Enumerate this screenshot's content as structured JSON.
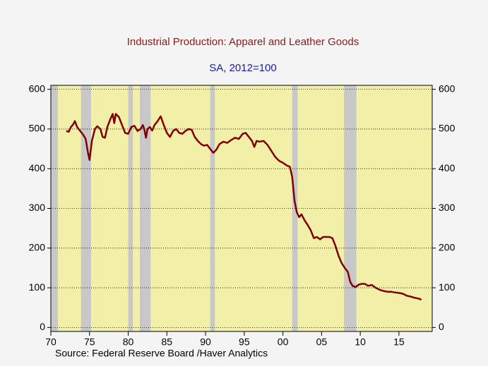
{
  "chart_data": {
    "type": "line",
    "title": "Industrial Production: Apparel and Leather Goods",
    "subtitle": "SA, 2012=100",
    "source": "Source:  Federal Reserve Board /Haver Analytics",
    "xlim": [
      1970,
      2019.3
    ],
    "ylim": [
      -10,
      610
    ],
    "xticks": [
      {
        "value": 1970,
        "label": "70"
      },
      {
        "value": 1975,
        "label": "75"
      },
      {
        "value": 1980,
        "label": "80"
      },
      {
        "value": 1985,
        "label": "85"
      },
      {
        "value": 1990,
        "label": "90"
      },
      {
        "value": 1995,
        "label": "95"
      },
      {
        "value": 2000,
        "label": "00"
      },
      {
        "value": 2005,
        "label": "05"
      },
      {
        "value": 2010,
        "label": "10"
      },
      {
        "value": 2015,
        "label": "15"
      }
    ],
    "yticks": [
      0,
      100,
      200,
      300,
      400,
      500,
      600
    ],
    "grid": true,
    "recessions": [
      [
        1969.9,
        1970.9
      ],
      [
        1973.9,
        1975.2
      ],
      [
        1980.0,
        1980.6
      ],
      [
        1981.5,
        1982.9
      ],
      [
        1990.6,
        1991.2
      ],
      [
        2001.2,
        2001.9
      ],
      [
        2007.9,
        2009.5
      ]
    ],
    "recession_color": "#c8c8c8",
    "background_color": "#f2f0a8",
    "series": [
      {
        "name": "Industrial Production: Apparel and Leather Goods",
        "color": "#800000",
        "x": [
          1972.0,
          1972.3,
          1972.6,
          1972.9,
          1973.1,
          1973.4,
          1973.8,
          1974.2,
          1974.5,
          1974.8,
          1975.0,
          1975.3,
          1975.7,
          1976.0,
          1976.4,
          1976.7,
          1977.0,
          1977.3,
          1977.7,
          1978.0,
          1978.2,
          1978.4,
          1978.8,
          1979.2,
          1979.6,
          1980.0,
          1980.4,
          1980.8,
          1981.2,
          1981.6,
          1981.9,
          1982.1,
          1982.3,
          1982.5,
          1982.8,
          1983.1,
          1983.4,
          1983.8,
          1984.2,
          1984.6,
          1985.0,
          1985.4,
          1985.8,
          1986.2,
          1986.6,
          1987.0,
          1987.4,
          1987.8,
          1988.2,
          1988.6,
          1989.0,
          1989.4,
          1989.8,
          1990.2,
          1990.6,
          1991.0,
          1991.4,
          1991.8,
          1992.3,
          1992.8,
          1993.3,
          1993.8,
          1994.3,
          1994.8,
          1995.2,
          1995.6,
          1996.0,
          1996.3,
          1996.6,
          1997.0,
          1997.5,
          1998.0,
          1998.5,
          1999.0,
          1999.5,
          2000.0,
          2000.5,
          2000.9,
          2001.2,
          2001.5,
          2001.8,
          2002.1,
          2002.4,
          2002.8,
          2003.2,
          2003.6,
          2004.0,
          2004.4,
          2004.8,
          2005.2,
          2005.6,
          2006.0,
          2006.4,
          2006.8,
          2007.2,
          2007.6,
          2008.0,
          2008.4,
          2008.7,
          2009.0,
          2009.4,
          2009.8,
          2010.2,
          2010.6,
          2011.0,
          2011.5,
          2012.0,
          2012.5,
          2013.0,
          2013.5,
          2014.0,
          2014.5,
          2015.0,
          2015.5,
          2016.0,
          2016.5,
          2017.0,
          2017.5,
          2017.9
        ],
        "values": [
          495,
          493,
          505,
          512,
          520,
          505,
          495,
          485,
          475,
          440,
          422,
          470,
          500,
          507,
          500,
          480,
          478,
          505,
          525,
          538,
          515,
          538,
          530,
          510,
          490,
          488,
          505,
          508,
          495,
          500,
          510,
          498,
          478,
          500,
          505,
          496,
          510,
          520,
          532,
          510,
          490,
          480,
          495,
          500,
          490,
          488,
          495,
          500,
          498,
          480,
          470,
          462,
          458,
          460,
          450,
          440,
          448,
          462,
          468,
          465,
          472,
          478,
          475,
          488,
          490,
          480,
          470,
          455,
          470,
          468,
          470,
          460,
          445,
          430,
          420,
          415,
          408,
          405,
          380,
          320,
          290,
          278,
          285,
          270,
          258,
          245,
          225,
          228,
          222,
          228,
          228,
          228,
          225,
          205,
          180,
          162,
          150,
          140,
          115,
          105,
          102,
          108,
          110,
          110,
          105,
          107,
          100,
          95,
          92,
          90,
          90,
          88,
          87,
          85,
          80,
          78,
          75,
          73,
          70
        ]
      }
    ]
  }
}
